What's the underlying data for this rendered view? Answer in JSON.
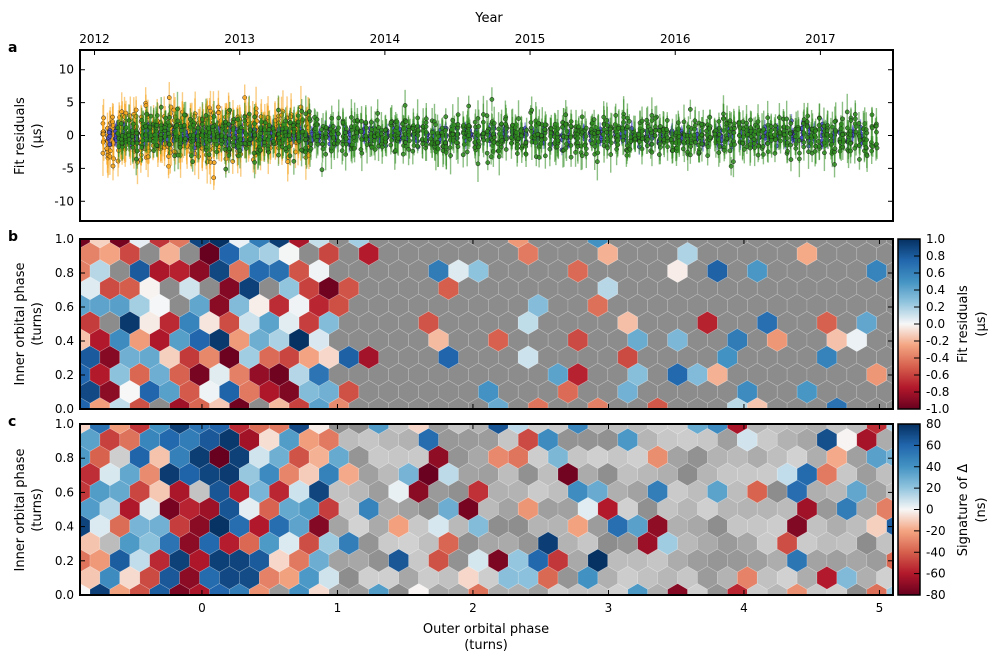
{
  "figure": {
    "top_axis_label": "Year",
    "bottom_axis_label_line1": "Outer orbital phase",
    "bottom_axis_label_line2": "(turns)"
  },
  "panels": {
    "a": {
      "letter": "a",
      "ylabel_line1": "Fit residuals",
      "ylabel_line2": "(μs)"
    },
    "b": {
      "letter": "b",
      "ylabel_line1": "Inner orbital phase",
      "ylabel_line2": "(turns)",
      "colorbar_label_line1": "Fit residuals",
      "colorbar_label_line2": "(μs)"
    },
    "c": {
      "letter": "c",
      "ylabel_line1": "Inner orbital phase",
      "ylabel_line2": "(turns)",
      "colorbar_label_line1": "Signature of Δ",
      "colorbar_label_line2": "(ns)"
    }
  },
  "colors": {
    "orange_series": "#f5a31a",
    "blue_series": "#4a50c8",
    "green_series": "#2e8b1e",
    "gray_cells": "#8c8c8c"
  },
  "chart_data": [
    {
      "id": "panel-a",
      "type": "scatter",
      "title": "",
      "xlabel": "Year",
      "ylabel": "Fit residuals (μs)",
      "x_top_ticks": [
        "2012",
        "2013",
        "2014",
        "2015",
        "2016",
        "2017"
      ],
      "x_top_values": [
        2012.0,
        2013.0,
        2014.0,
        2015.0,
        2016.0,
        2017.0
      ],
      "xlim": [
        2011.9,
        2017.5
      ],
      "ylim": [
        -13,
        13
      ],
      "yticks": [
        10,
        5,
        0,
        -5,
        -10
      ],
      "ytick_labels": [
        "10",
        "5",
        "0",
        "-5",
        "-10"
      ],
      "series": [
        {
          "name": "orange",
          "color": "#f5a31a",
          "x_range": [
            2012.05,
            2013.5
          ],
          "approx_spread": 3.5
        },
        {
          "name": "blue",
          "color": "#4a50c8",
          "x_range": [
            2012.1,
            2017.3
          ],
          "approx_spread": 1.2
        },
        {
          "name": "green",
          "color": "#2e8b1e",
          "x_range": [
            2012.15,
            2017.4
          ],
          "approx_spread": 2.8
        }
      ]
    },
    {
      "id": "panel-b",
      "type": "heatmap",
      "xlabel": "Outer orbital phase (turns)",
      "ylabel": "Inner orbital phase (turns)",
      "xlim": [
        -0.9,
        5.1
      ],
      "ylim": [
        0.0,
        1.0
      ],
      "yticks": [
        0.0,
        0.2,
        0.4,
        0.6,
        0.8,
        1.0
      ],
      "ytick_labels": [
        "0.0",
        "0.2",
        "0.4",
        "0.6",
        "0.8",
        "1.0"
      ],
      "colorbar_range": [
        -1.0,
        1.0
      ],
      "colorbar_ticks": [
        "1.0",
        "0.8",
        "0.6",
        "0.4",
        "0.2",
        "0.0",
        "-0.2",
        "-0.4",
        "-0.6",
        "-0.8",
        "-1.0"
      ],
      "colorbar_values": [
        1.0,
        0.8,
        0.6,
        0.4,
        0.2,
        0.0,
        -0.2,
        -0.4,
        -0.6,
        -0.8,
        -1.0
      ],
      "colorbar_label": "Fit residuals (μs)"
    },
    {
      "id": "panel-c",
      "type": "heatmap",
      "xlabel": "Outer orbital phase (turns)",
      "ylabel": "Inner orbital phase (turns)",
      "xlim": [
        -0.9,
        5.1
      ],
      "ylim": [
        0.0,
        1.0
      ],
      "xticks": [
        0,
        1,
        2,
        3,
        4,
        5
      ],
      "xtick_labels": [
        "0",
        "1",
        "2",
        "3",
        "4",
        "5"
      ],
      "yticks": [
        0.0,
        0.2,
        0.4,
        0.6,
        0.8,
        1.0
      ],
      "ytick_labels": [
        "0.0",
        "0.2",
        "0.4",
        "0.6",
        "0.8",
        "1.0"
      ],
      "colorbar_range": [
        -80,
        80
      ],
      "colorbar_ticks": [
        "80",
        "60",
        "40",
        "20",
        "0",
        "-20",
        "-40",
        "-60",
        "-80"
      ],
      "colorbar_values": [
        80,
        60,
        40,
        20,
        0,
        -20,
        -40,
        -60,
        -80
      ],
      "colorbar_label": "Signature of Δ (ns)"
    }
  ]
}
